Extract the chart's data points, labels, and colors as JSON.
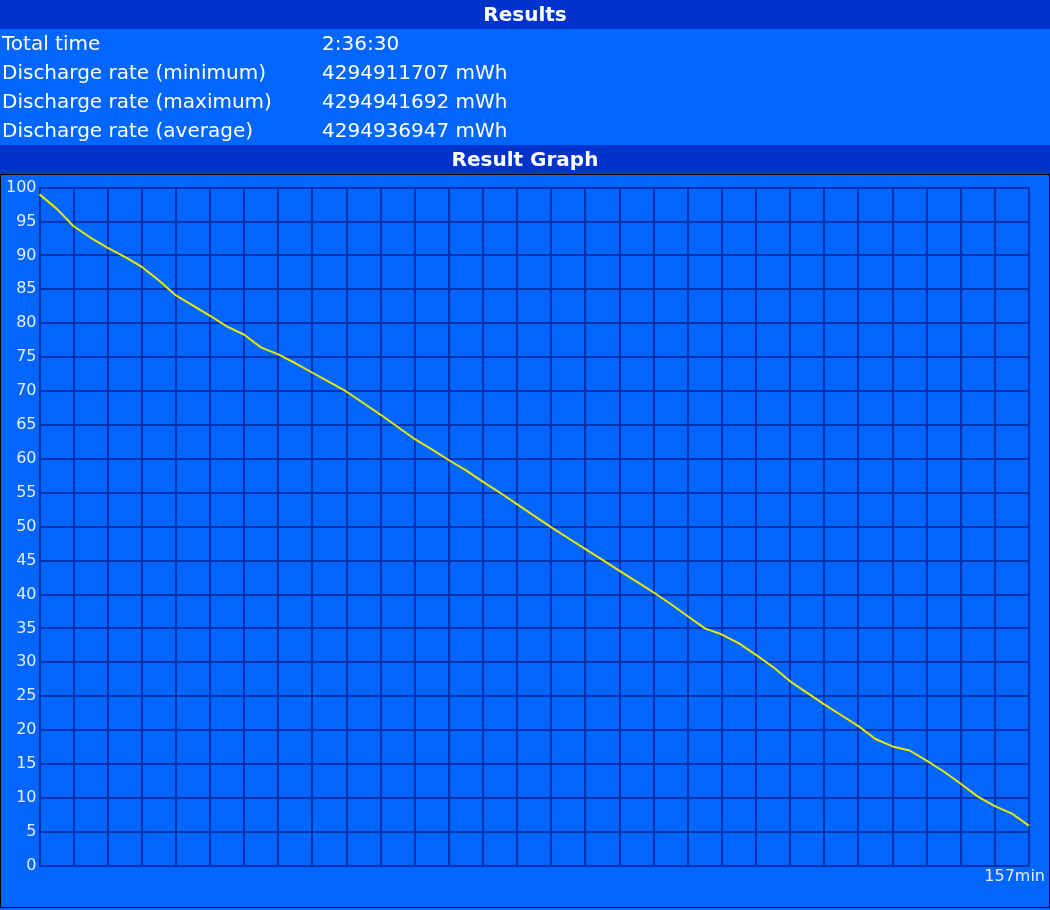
{
  "chart_data": {
    "type": "line",
    "title": "Results",
    "subtitle": "Result Graph",
    "annotations": [
      "Total time",
      "2:36:30",
      "Discharge rate (minimum)",
      "4294911707 mWh",
      "Discharge rate (maximum)",
      "4294941692 mWh",
      "Discharge rate (average)",
      "4294936947 mWh",
      "157min"
    ],
    "categories": [
      null,
      null,
      null,
      null,
      null,
      null,
      null,
      null,
      null,
      null,
      null,
      null,
      null,
      null,
      null,
      null,
      null,
      null,
      null,
      null,
      null,
      null,
      null,
      null,
      null,
      null,
      null,
      null,
      null,
      null,
      null,
      null,
      null,
      null,
      null,
      null,
      null,
      null,
      null,
      null,
      null,
      null,
      null,
      null,
      null,
      null,
      null,
      null,
      null,
      null,
      null,
      null,
      null,
      null,
      null,
      null,
      null,
      null,
      null
    ],
    "series": [
      {
        "color": "#e8e800",
        "values": [
          99.0,
          96.9,
          94.3,
          92.6,
          91.1,
          89.8,
          88.3,
          86.3,
          84.1,
          82.6,
          81.1,
          79.5,
          78.3,
          76.4,
          75.4,
          74.1,
          72.7,
          71.3,
          69.9,
          68.2,
          66.5,
          64.7,
          62.9,
          61.4,
          59.8,
          58.3,
          56.6,
          55.0,
          53.3,
          51.6,
          49.9,
          48.3,
          46.7,
          45.1,
          43.5,
          41.9,
          40.3,
          38.6,
          36.8,
          35.0,
          34.1,
          32.8,
          31.1,
          29.3,
          27.2,
          25.5,
          23.8,
          22.2,
          20.6,
          18.7,
          17.6,
          17.0,
          15.5,
          13.9,
          12.1,
          10.2,
          8.8,
          7.7,
          5.9
        ]
      }
    ],
    "ylim": [
      0,
      100
    ],
    "yticks": [
      0,
      5,
      10,
      15,
      20,
      25,
      30,
      35,
      40,
      45,
      50,
      55,
      60,
      65,
      70,
      75,
      80,
      85,
      90,
      95,
      100
    ],
    "grid": true,
    "legend": false,
    "marker": "none",
    "line_style": "solid"
  }
}
